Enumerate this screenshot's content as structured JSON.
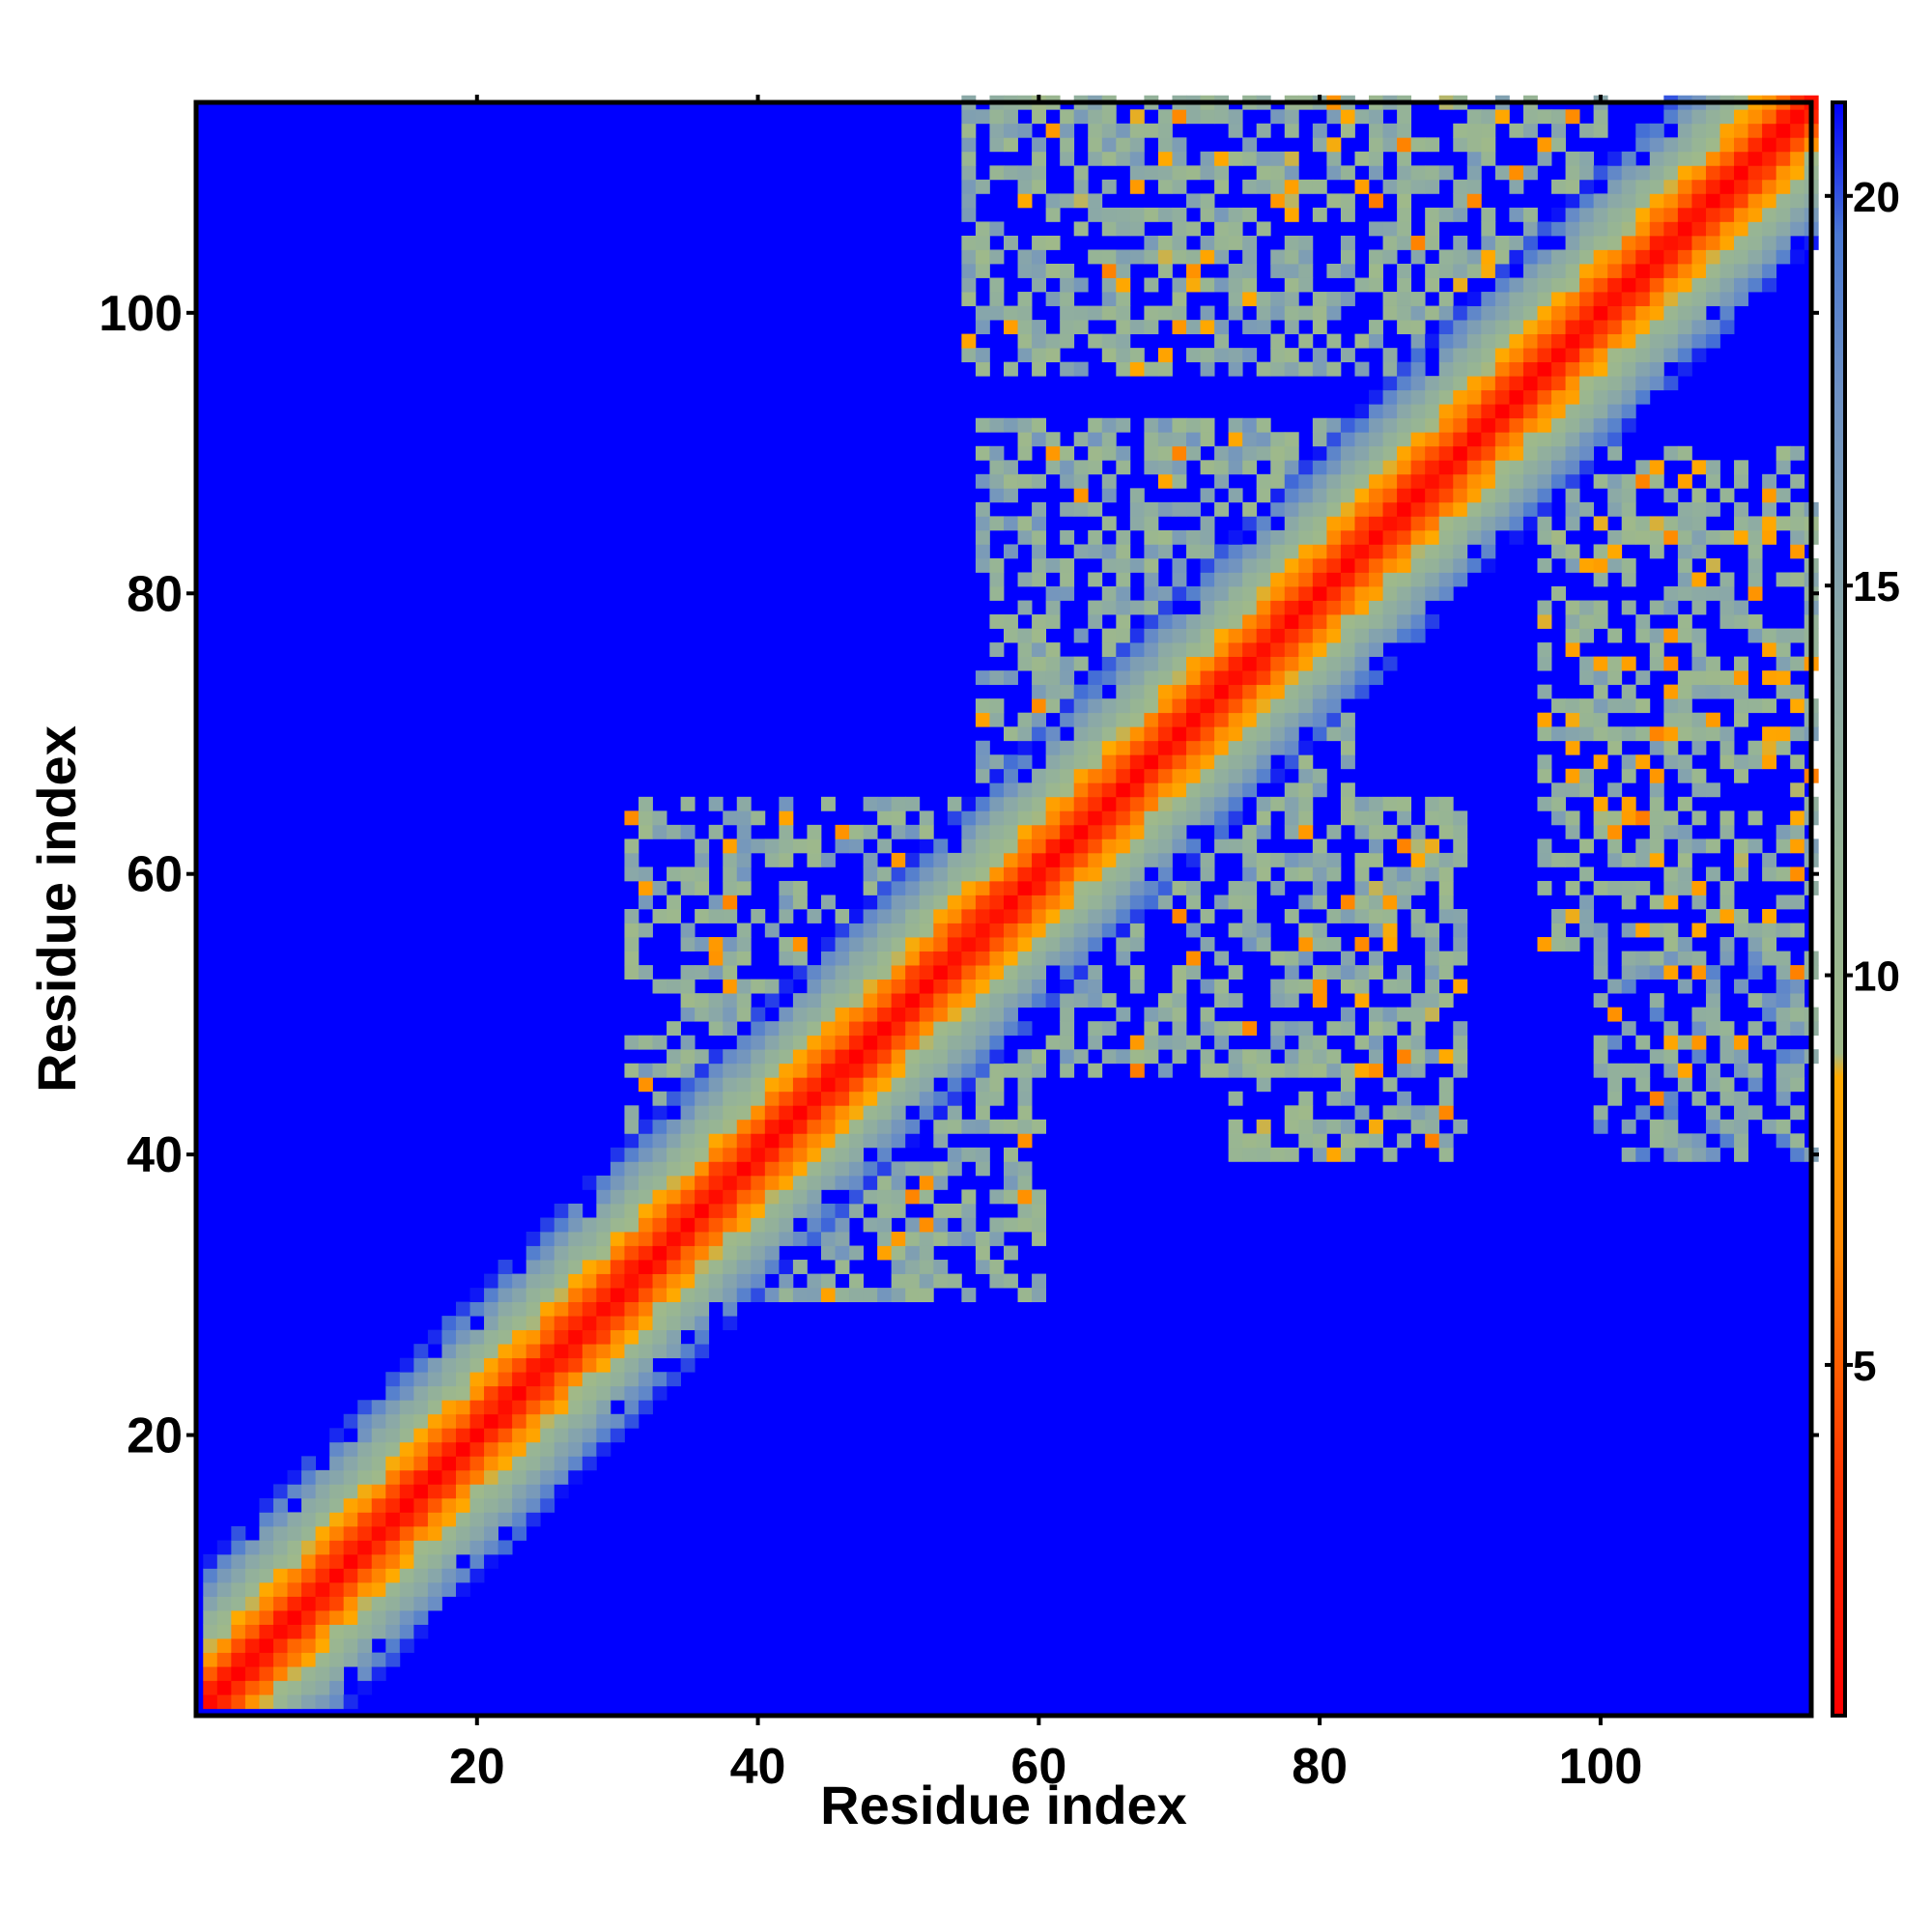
{
  "chart_data": {
    "type": "heatmap",
    "title": "",
    "xlabel": "Residue index",
    "ylabel": "Residue index",
    "n_residues": 115,
    "xlim": [
      1,
      115
    ],
    "ylim": [
      1,
      115
    ],
    "x_ticks": [
      "20",
      "40",
      "60",
      "80",
      "100"
    ],
    "x_tick_values": [
      20,
      40,
      60,
      80,
      100
    ],
    "y_ticks": [
      "20",
      "40",
      "60",
      "80",
      "100"
    ],
    "y_tick_values": [
      20,
      40,
      60,
      80,
      100
    ],
    "colorbar": {
      "range": [
        0.5,
        21.2
      ],
      "ticks": [
        "5",
        "10",
        "15",
        "20"
      ],
      "tick_values": [
        5,
        10,
        15,
        20
      ],
      "color_stops": [
        {
          "value": 0.5,
          "color": "#ff0000"
        },
        {
          "value": 3.5,
          "color": "#ff3300"
        },
        {
          "value": 6.5,
          "color": "#ff8800"
        },
        {
          "value": 8.7,
          "color": "#ffaa00"
        },
        {
          "value": 9.0,
          "color": "#9fb98a"
        },
        {
          "value": 11.5,
          "color": "#96b496"
        },
        {
          "value": 14.5,
          "color": "#8aa8a8"
        },
        {
          "value": 17.5,
          "color": "#6d90c4"
        },
        {
          "value": 19.5,
          "color": "#4a78d2"
        },
        {
          "value": 21.2,
          "color": "#0000ff"
        }
      ]
    },
    "background_color": "#0000ff",
    "contact_regions": [
      {
        "x_range": [
          31,
          60
        ],
        "y_range": [
          30,
          65
        ],
        "level": 13.0
      },
      {
        "x_range": [
          56,
          82
        ],
        "y_range": [
          46,
          92
        ],
        "level": 13.0
      },
      {
        "x_range": [
          74,
          90
        ],
        "y_range": [
          40,
          65
        ],
        "level": 12.5
      },
      {
        "x_range": [
          96,
          115
        ],
        "y_range": [
          55,
          90
        ],
        "level": 12.0
      },
      {
        "x_range": [
          100,
          115
        ],
        "y_range": [
          40,
          60
        ],
        "level": 15.0
      },
      {
        "x_range": [
          55,
          95
        ],
        "y_range": [
          96,
          115
        ],
        "level": 12.5
      },
      {
        "x_range": [
          72,
          100
        ],
        "y_range": [
          100,
          115
        ],
        "level": 11.5
      }
    ]
  }
}
